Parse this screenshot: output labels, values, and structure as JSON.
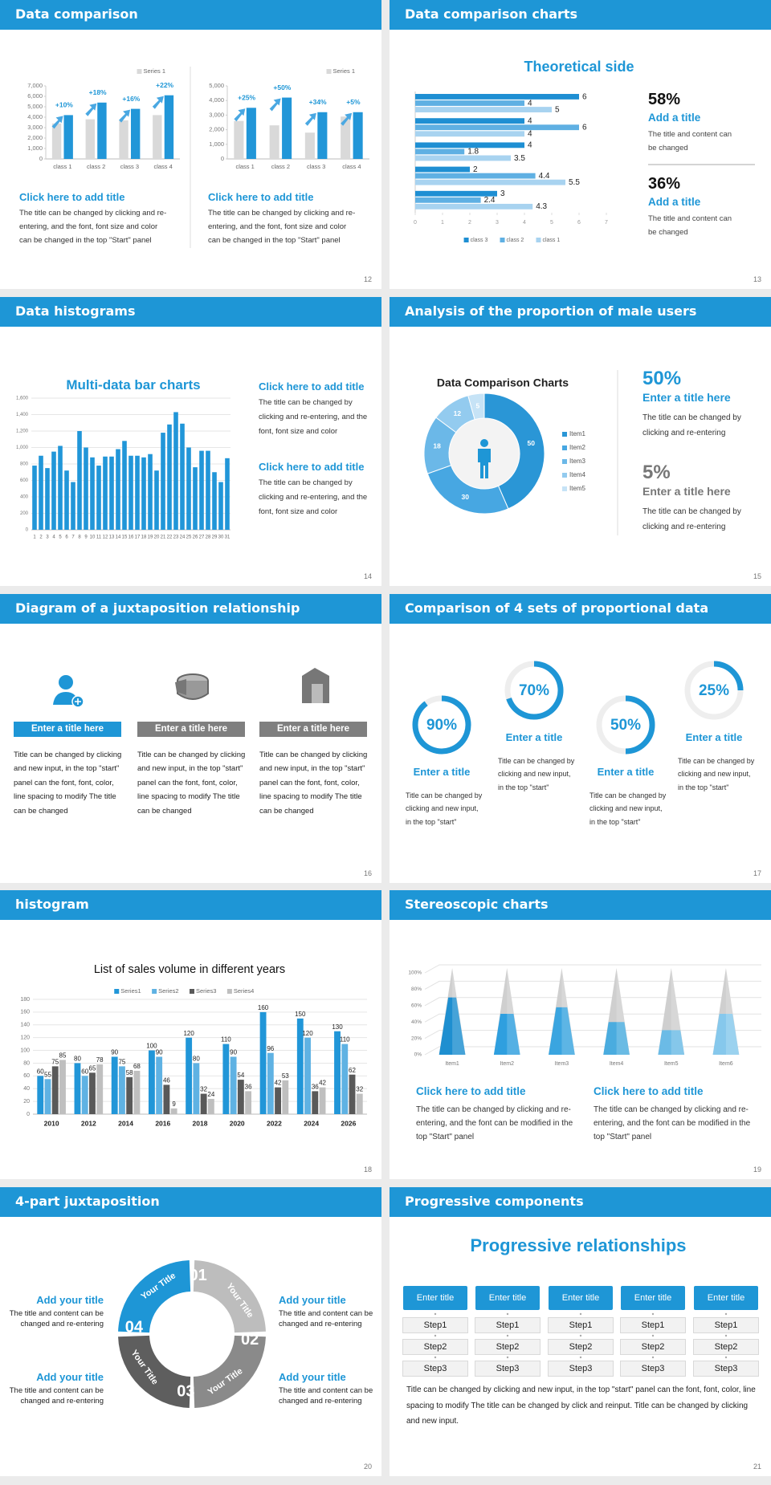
{
  "slides": [
    {
      "title": "Data comparison",
      "page": "12",
      "charts": [
        {
          "type": "bar",
          "categories": [
            "class 1",
            "class 2",
            "class 3",
            "class 4"
          ],
          "series": [
            {
              "name": "Series 1",
              "color": "#d9d9d9",
              "values": [
                3400,
                3800,
                3700,
                4200
              ]
            },
            {
              "color": "#2196d8",
              "values": [
                4200,
                5400,
                4800,
                6100
              ]
            }
          ],
          "ylim": [
            0,
            7000
          ],
          "yticks": [
            0,
            {
              "value": 1000,
              "label": "1,000"
            },
            {
              "value": 2000,
              "label": "2,000"
            },
            {
              "value": 3000,
              "label": "3,000"
            },
            {
              "value": 4000,
              "label": "4,000"
            },
            {
              "value": 5000,
              "label": "5,000"
            },
            {
              "value": 6000,
              "label": "6,000"
            },
            {
              "value": 7000,
              "label": "7,000"
            }
          ],
          "annotations": [
            "+10%",
            "+18%",
            "+16%",
            "+22%"
          ]
        },
        {
          "type": "bar",
          "categories": [
            "class 1",
            "class 2",
            "class 3",
            "class 4"
          ],
          "series": [
            {
              "name": "Series 1",
              "color": "#d9d9d9",
              "values": [
                2600,
                2300,
                1800,
                2900
              ]
            },
            {
              "color": "#2196d8",
              "values": [
                3500,
                4200,
                3200,
                3200
              ]
            }
          ],
          "ylim": [
            0,
            5000
          ],
          "yticks": [
            0,
            {
              "value": 1000,
              "label": "1,000"
            },
            {
              "value": 2000,
              "label": "2,000"
            },
            {
              "value": 3000,
              "label": "3,000"
            },
            {
              "value": 4000,
              "label": "4,000"
            },
            {
              "value": 5000,
              "label": "5,000"
            }
          ],
          "annotations": [
            "+25%",
            "+50%",
            "+34%",
            "+5%"
          ]
        }
      ],
      "blocks": [
        {
          "heading": "Click here to add title",
          "text": "The title can be changed by clicking and re-entering, and the font, font size and color can be changed in the top \"Start\" panel"
        },
        {
          "heading": "Click here to add title",
          "text": "The title can be changed by clicking and re-entering, and the font, font size and color can be changed in the top \"Start\" panel"
        }
      ]
    },
    {
      "title": "Data comparison charts",
      "page": "13",
      "subtitle": "Theoretical side",
      "chart": {
        "type": "hbar",
        "series": [
          {
            "name": "class 3",
            "color": "#1e8fd3",
            "values": [
              6,
              4,
              4,
              2,
              3
            ]
          },
          {
            "name": "class 2",
            "color": "#5fb0e3",
            "values": [
              4,
              6,
              1.8,
              4.4,
              2.4
            ]
          },
          {
            "name": "class 1",
            "color": "#a8d3f0",
            "values": [
              5,
              4,
              3.5,
              5.5,
              4.3
            ]
          }
        ],
        "xlim": [
          0,
          7
        ],
        "xticks": [
          0,
          1,
          2,
          3,
          4,
          5,
          6,
          7
        ],
        "data_labels": true
      },
      "stats": [
        {
          "value": "58%",
          "heading": "Add a title",
          "text": "The title and content can be changed"
        },
        {
          "value": "36%",
          "heading": "Add a title",
          "text": "The title and content can be changed"
        }
      ]
    },
    {
      "title": "Data histograms",
      "page": "14",
      "subtitle": "Multi-data bar charts",
      "chart": {
        "type": "bar",
        "categories": [
          "1",
          "2",
          "3",
          "4",
          "5",
          "6",
          "7",
          "8",
          "9",
          "10",
          "11",
          "12",
          "13",
          "14",
          "15",
          "16",
          "17",
          "18",
          "19",
          "20",
          "21",
          "22",
          "23",
          "24",
          "25",
          "26",
          "27",
          "28",
          "29",
          "30",
          "31"
        ],
        "series": [
          {
            "color": "#2196d8",
            "values": [
              780,
              900,
              750,
              950,
              1020,
              720,
              580,
              1200,
              1000,
              880,
              780,
              890,
              890,
              980,
              1080,
              900,
              900,
              880,
              920,
              720,
              1180,
              1280,
              1430,
              1290,
              1000,
              760,
              960,
              960,
              700,
              580,
              870
            ]
          }
        ],
        "ylim": [
          0,
          1600
        ],
        "yticks": [
          0,
          200,
          400,
          600,
          800,
          {
            "value": 1000,
            "label": "1,000"
          },
          {
            "value": 1200,
            "label": "1,200"
          },
          {
            "value": 1400,
            "label": "1,400"
          },
          {
            "value": 1600,
            "label": "1,600"
          }
        ],
        "grid": true
      },
      "blocks": [
        {
          "heading": "Click here to add title",
          "text": "The title can be changed by clicking and re-entering, and the font, font size and color"
        },
        {
          "heading": "Click here to add title",
          "text": "The title can be changed by clicking and re-entering, and the font, font size and color"
        }
      ]
    },
    {
      "title": "Analysis of the proportion of male users",
      "page": "15",
      "chart": {
        "type": "donut",
        "title": "Data Comparison Charts",
        "categories": [
          "Item1",
          "Item2",
          "Item3",
          "Item4",
          "Item5"
        ],
        "values": [
          50,
          30,
          18,
          12,
          5
        ],
        "colors": [
          "#2a96d6",
          "#47a7e2",
          "#6bb8e8",
          "#93cbef",
          "#c6e3f6"
        ]
      },
      "stats": [
        {
          "value": "50%",
          "heading": "Enter a title here",
          "text": "The title can be changed by clicking and re-entering"
        },
        {
          "value": "5%",
          "heading": "Enter a title here",
          "text": "The title can be changed by clicking and re-entering"
        }
      ]
    },
    {
      "title": "Diagram of a juxtaposition relationship",
      "page": "16",
      "columns": [
        {
          "heading": "Enter a title here",
          "text": "Title can be changed by clicking and new input, in the top \"start\" panel can the font, font, color, line spacing to modify The title can be changed"
        },
        {
          "heading": "Enter a title here",
          "text": "Title can be changed by clicking and new input, in the top \"start\" panel can the font, font, color, line spacing to modify The title can be changed"
        },
        {
          "heading": "Enter a title here",
          "text": "Title can be changed by clicking and new input, in the top \"start\" panel can the font, font, color, line spacing to modify The title can be changed"
        }
      ]
    },
    {
      "title": "Comparison of 4 sets of proportional data",
      "page": "17",
      "chart": {
        "type": "ring",
        "values": [
          90,
          70,
          50,
          25
        ],
        "value_labels": [
          "90%",
          "70%",
          "50%",
          "25%"
        ],
        "ylim": [
          0,
          100
        ],
        "color": "#1e96d6"
      },
      "items": [
        {
          "heading": "Enter a title",
          "text": "Title can be changed by clicking and new input, in the top \"start\""
        },
        {
          "heading": "Enter a title",
          "text": "Title can be changed by clicking and new input, in the top \"start\""
        },
        {
          "heading": "Enter a title",
          "text": "Title can be changed by clicking and new input, in the top \"start\""
        },
        {
          "heading": "Enter a title",
          "text": "Title can be changed by clicking and new input, in the top \"start\""
        }
      ]
    },
    {
      "title": "histogram",
      "page": "18",
      "chart": {
        "type": "bar",
        "title": "List of sales volume in different years",
        "categories": [
          "2010",
          "2012",
          "2014",
          "2016",
          "2018",
          "2020",
          "2022",
          "2024",
          "2026"
        ],
        "series": [
          {
            "name": "Series1",
            "color": "#2196d8",
            "values": [
              60,
              80,
              90,
              100,
              120,
              110,
              160,
              150,
              130
            ]
          },
          {
            "name": "Series2",
            "color": "#5fb2e3",
            "values": [
              55,
              60,
              75,
              90,
              80,
              90,
              96,
              120,
              110
            ]
          },
          {
            "name": "Series3",
            "color": "#595959",
            "values": [
              75,
              65,
              58,
              46,
              32,
              54,
              42,
              36,
              62
            ]
          },
          {
            "name": "Series4",
            "color": "#bfbfbf",
            "values": [
              85,
              78,
              68,
              9,
              24,
              36,
              53,
              42,
              32
            ]
          }
        ],
        "ylim": [
          0,
          180
        ],
        "yticks": [
          0,
          20,
          40,
          60,
          80,
          100,
          120,
          140,
          160,
          180
        ],
        "grid": true,
        "data_labels": true
      }
    },
    {
      "title": "Stereoscopic charts",
      "page": "19",
      "chart": {
        "type": "cone",
        "categories": [
          "Item1",
          "Item2",
          "Item3",
          "Item4",
          "Item5",
          "Item6"
        ],
        "values": [
          70,
          50,
          58,
          40,
          30,
          50
        ],
        "colors": [
          "#1e8fd0",
          "#2f9fdf",
          "#3aa5e0",
          "#4aacdf",
          "#6bbbe6",
          "#86c8ec"
        ],
        "ylim": [
          0,
          100
        ],
        "yticks": [
          {
            "value": 0,
            "label": "0%"
          },
          {
            "value": 20,
            "label": "20%"
          },
          {
            "value": 40,
            "label": "40%"
          },
          {
            "value": 60,
            "label": "60%"
          },
          {
            "value": 80,
            "label": "80%"
          },
          {
            "value": 100,
            "label": "100%"
          }
        ],
        "grid": true
      },
      "blocks": [
        {
          "heading": "Click here to add title",
          "text": "The title can be changed by clicking and re-entering, and the font can be modified in the top \"Start\" panel"
        },
        {
          "heading": "Click here to add title",
          "text": "The title can be changed by clicking and re-entering, and the font can be modified in the top \"Start\" panel"
        }
      ]
    },
    {
      "title": "4-part juxtaposition",
      "page": "20",
      "segments": [
        {
          "number": "01",
          "label": "Your Title"
        },
        {
          "number": "02",
          "label": "Your Title"
        },
        {
          "number": "03",
          "label": "Your Title"
        },
        {
          "number": "04",
          "label": "Your Title"
        }
      ],
      "items": [
        {
          "heading": "Add your title",
          "text": "The title and content can be changed and re-entering"
        },
        {
          "heading": "Add your title",
          "text": "The title and content can be changed and re-entering"
        },
        {
          "heading": "Add your title",
          "text": "The title and content can be changed and re-entering"
        },
        {
          "heading": "Add your title",
          "text": "The title and content can be changed and re-entering"
        }
      ]
    },
    {
      "title": "Progressive components",
      "page": "21",
      "subtitle": "Progressive relationships",
      "columns": [
        {
          "heading": "Enter title",
          "steps": [
            "Step1",
            "Step2",
            "Step3"
          ]
        },
        {
          "heading": "Enter title",
          "steps": [
            "Step1",
            "Step2",
            "Step3"
          ]
        },
        {
          "heading": "Enter title",
          "steps": [
            "Step1",
            "Step2",
            "Step3"
          ]
        },
        {
          "heading": "Enter title",
          "steps": [
            "Step1",
            "Step2",
            "Step3"
          ]
        },
        {
          "heading": "Enter title",
          "steps": [
            "Step1",
            "Step2",
            "Step3"
          ]
        }
      ],
      "text": "Title can be changed by clicking and new input, in the top \"start\" panel can the font, font, color, line spacing to modify The title can be changed by click and reinput. Title can be changed by clicking and new input."
    }
  ]
}
